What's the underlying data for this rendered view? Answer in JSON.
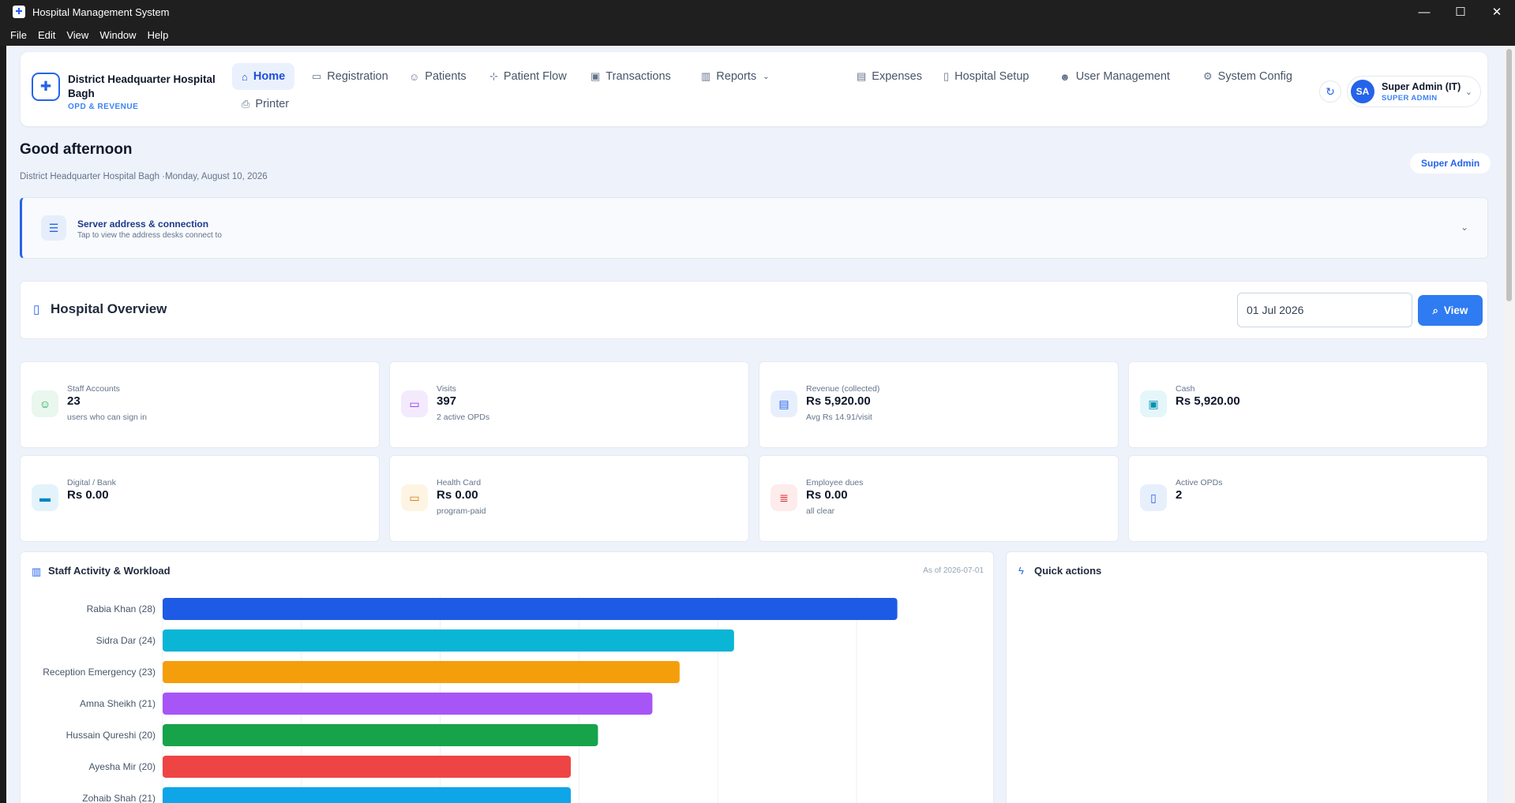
{
  "window": {
    "title": "Hospital Management System"
  },
  "menu": [
    "File",
    "Edit",
    "View",
    "Window",
    "Help"
  ],
  "brand": {
    "name": "District Headquarter Hospital Bagh",
    "subtitle": "OPD & REVENUE"
  },
  "nav": [
    {
      "label": "Home",
      "icon": "home-icon",
      "active": true
    },
    {
      "label": "Registration",
      "icon": "id-card-icon"
    },
    {
      "label": "Patients",
      "icon": "users-icon"
    },
    {
      "label": "Patient Flow",
      "icon": "flow-icon"
    },
    {
      "label": "Transactions",
      "icon": "banknote-icon"
    },
    {
      "label": "Reports",
      "icon": "bar-chart-icon",
      "dropdown": true
    },
    {
      "label": "Expenses",
      "icon": "wallet-icon"
    },
    {
      "label": "Hospital Setup",
      "icon": "building-icon"
    },
    {
      "label": "User Management",
      "icon": "user-cog-icon"
    },
    {
      "label": "System Config",
      "icon": "gear-icon"
    },
    {
      "label": "Printer",
      "icon": "printer-icon"
    }
  ],
  "user": {
    "initials": "SA",
    "name": "Super Admin (IT)",
    "role": "SUPER ADMIN"
  },
  "greeting": {
    "title": "Good afternoon",
    "subtitle": "District Headquarter Hospital Bagh ·Monday, August 10, 2026",
    "role_badge": "Super Admin"
  },
  "server": {
    "title": "Server address & connection",
    "subtitle": "Tap to view the address desks connect to"
  },
  "overview": {
    "title": "Hospital Overview",
    "date": "01 Jul 2026",
    "view_label": "View"
  },
  "stats": [
    {
      "label": "Staff Accounts",
      "value": "23",
      "hint": "users who can sign in",
      "icon": "users-icon",
      "color": "#16a34a",
      "bg": "#e9f7ef"
    },
    {
      "label": "Visits",
      "value": "397",
      "hint": "2 active OPDs",
      "icon": "ticket-icon",
      "color": "#9333ea",
      "bg": "#f3ebfd"
    },
    {
      "label": "Revenue (collected)",
      "value": "Rs 5,920.00",
      "hint": "Avg Rs 14.91/visit",
      "icon": "wallet-icon",
      "color": "#2563eb",
      "bg": "#e8effc"
    },
    {
      "label": "Cash",
      "value": "Rs 5,920.00",
      "hint": "",
      "icon": "banknote-icon",
      "color": "#0891b2",
      "bg": "#e5f6fa"
    },
    {
      "label": "Digital / Bank",
      "value": "Rs 0.00",
      "hint": "",
      "icon": "credit-card-icon",
      "color": "#0284c7",
      "bg": "#e4f3fb"
    },
    {
      "label": "Health Card",
      "value": "Rs 0.00",
      "hint": "program-paid",
      "icon": "id-card-icon",
      "color": "#d97706",
      "bg": "#fdf4e3"
    },
    {
      "label": "Employee dues",
      "value": "Rs 0.00",
      "hint": "all clear",
      "icon": "receipt-icon",
      "color": "#dc2626",
      "bg": "#fdeceb"
    },
    {
      "label": "Active OPDs",
      "value": "2",
      "hint": "",
      "icon": "building-icon",
      "color": "#2563eb",
      "bg": "#e8effc"
    }
  ],
  "activity": {
    "title": "Staff Activity & Workload",
    "as_of": "As of 2026-07-01"
  },
  "quick_actions": {
    "title": "Quick actions"
  },
  "chart_data": {
    "type": "bar",
    "orientation": "horizontal",
    "categories": [
      "Rabia Khan",
      "Sidra Dar",
      "Reception Emergency",
      "Amna Sheikh",
      "Hussain Qureshi",
      "Ayesha Mir",
      "Zohaib Shah"
    ],
    "tick_labels": [
      "Rabia Khan  (28)",
      "Sidra Dar  (24)",
      "Reception Emergency  (23)",
      "Amna Sheikh  (21)",
      "Hussain Qureshi  (20)",
      "Ayesha Mir  (20)",
      "Zohaib Shah  (21)"
    ],
    "values": [
      27,
      21,
      19,
      18,
      16,
      15,
      15
    ],
    "colors": [
      "#1d5be6",
      "#0ab5d6",
      "#f59e0b",
      "#a855f7",
      "#16a34a",
      "#ef4444",
      "#0ea5e9"
    ],
    "xlim": [
      0,
      30
    ],
    "grid": true
  }
}
